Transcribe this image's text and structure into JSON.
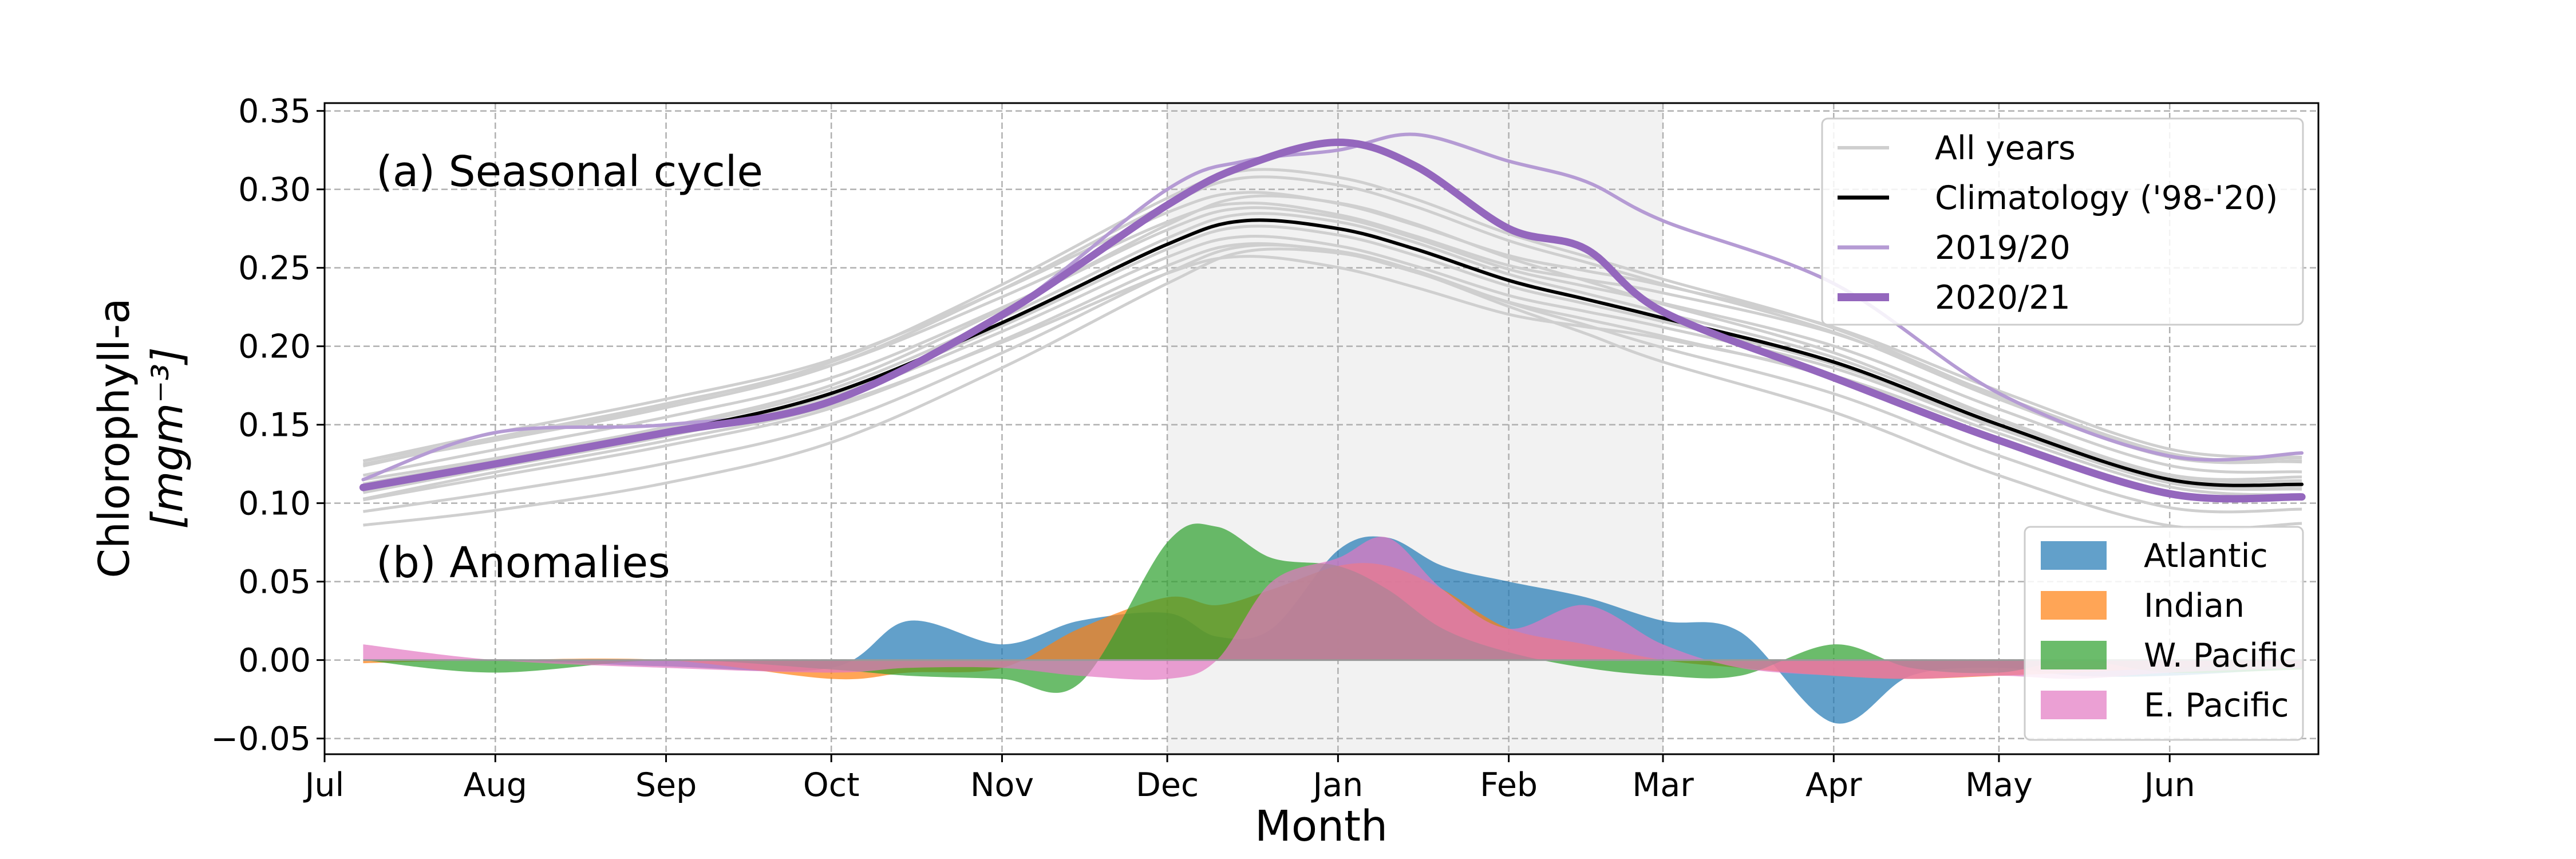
{
  "chart_data": {
    "type": "line",
    "xlabel": "Month",
    "ylabel_line1": "Chlorophyll-a",
    "ylabel_line2": "[mgm⁻³]",
    "ylim": [
      -0.06,
      0.355
    ],
    "yticks": [
      -0.05,
      0.0,
      0.05,
      0.1,
      0.15,
      0.2,
      0.25,
      0.3,
      0.35
    ],
    "ytick_labels": [
      "−0.05",
      "0.00",
      "0.05",
      "0.10",
      "0.15",
      "0.20",
      "0.25",
      "0.30",
      "0.35"
    ],
    "xlim": [
      "Jul 1",
      "Jun 28"
    ],
    "xticks": [
      "Jul",
      "Aug",
      "Sep",
      "Oct",
      "Nov",
      "Dec",
      "Jan",
      "Feb",
      "Mar",
      "Apr",
      "May",
      "Jun"
    ],
    "grid": true,
    "shaded_period": [
      "Dec 1",
      "Mar 1"
    ],
    "panel_a_label": "(a) Seasonal cycle",
    "panel_b_label": "(b) Anomalies",
    "legend_a_position": "top-right",
    "legend_b_position": "bottom-right",
    "x_dates": [
      "Jul 8",
      "Aug 1",
      "Sep 1",
      "Oct 1",
      "Nov 1",
      "Dec 1",
      "Dec 15",
      "Jan 1",
      "Jan 15",
      "Feb 1",
      "Feb 15",
      "Mar 1",
      "Apr 1",
      "May 1",
      "Jun 1",
      "Jun 25"
    ],
    "line_series": [
      {
        "name": "Climatology  ('98-'20)",
        "color": "#000000",
        "values": [
          0.11,
          0.125,
          0.145,
          0.17,
          0.215,
          0.265,
          0.28,
          0.275,
          0.262,
          0.242,
          0.23,
          0.218,
          0.19,
          0.15,
          0.115,
          0.112
        ]
      },
      {
        "name": "2019/20",
        "color": "#b59bd4",
        "values": [
          0.115,
          0.145,
          0.15,
          0.165,
          0.22,
          0.3,
          0.318,
          0.325,
          0.335,
          0.318,
          0.305,
          0.28,
          0.24,
          0.17,
          0.13,
          0.132
        ]
      },
      {
        "name": "2020/21",
        "color": "#9467bd",
        "values": [
          0.11,
          0.125,
          0.145,
          0.165,
          0.22,
          0.29,
          0.315,
          0.33,
          0.315,
          0.275,
          0.262,
          0.222,
          0.18,
          0.14,
          0.106,
          0.104
        ]
      }
    ],
    "all_years_name": "All years",
    "all_years_color": "#cfcfcf",
    "area_x_dates": [
      "Jul 8",
      "Aug 1",
      "Sep 1",
      "Oct 1",
      "Oct 15",
      "Nov 1",
      "Nov 15",
      "Dec 1",
      "Dec 10",
      "Dec 20",
      "Jan 1",
      "Jan 10",
      "Jan 20",
      "Feb 1",
      "Feb 15",
      "Mar 1",
      "Mar 15",
      "Apr 1",
      "Apr 15",
      "May 1",
      "May 15",
      "Jun 1",
      "Jun 25"
    ],
    "area_series": [
      {
        "name": "Atlantic",
        "color": "#1f77b4",
        "values": [
          0.0,
          0.0,
          -0.004,
          -0.005,
          0.025,
          0.01,
          0.025,
          0.03,
          0.015,
          0.02,
          0.07,
          0.078,
          0.06,
          0.05,
          0.04,
          0.025,
          0.018,
          -0.04,
          -0.01,
          -0.005,
          -0.01,
          -0.01,
          -0.005
        ]
      },
      {
        "name": "Indian",
        "color": "#ff7f0e",
        "values": [
          -0.002,
          0.0,
          0.0,
          -0.012,
          -0.008,
          -0.005,
          0.02,
          0.04,
          0.035,
          0.045,
          0.06,
          0.06,
          0.045,
          0.02,
          0.01,
          0.0,
          -0.005,
          -0.01,
          -0.012,
          -0.01,
          -0.008,
          -0.005,
          -0.002
        ]
      },
      {
        "name": "W. Pacific",
        "color": "#2ca02c",
        "values": [
          0.0,
          -0.008,
          0.0,
          -0.006,
          -0.01,
          -0.012,
          -0.015,
          0.075,
          0.085,
          0.065,
          0.06,
          0.045,
          0.02,
          0.005,
          -0.005,
          -0.01,
          -0.01,
          0.01,
          -0.005,
          -0.008,
          0.0,
          -0.008,
          -0.006
        ]
      },
      {
        "name": "E. Pacific",
        "color": "#e377c2",
        "values": [
          0.01,
          0.0,
          -0.005,
          -0.008,
          -0.005,
          -0.005,
          -0.01,
          -0.012,
          0.0,
          0.05,
          0.065,
          0.078,
          0.045,
          0.02,
          0.035,
          0.01,
          -0.005,
          -0.01,
          -0.012,
          -0.01,
          -0.012,
          -0.008,
          -0.005
        ]
      }
    ]
  }
}
